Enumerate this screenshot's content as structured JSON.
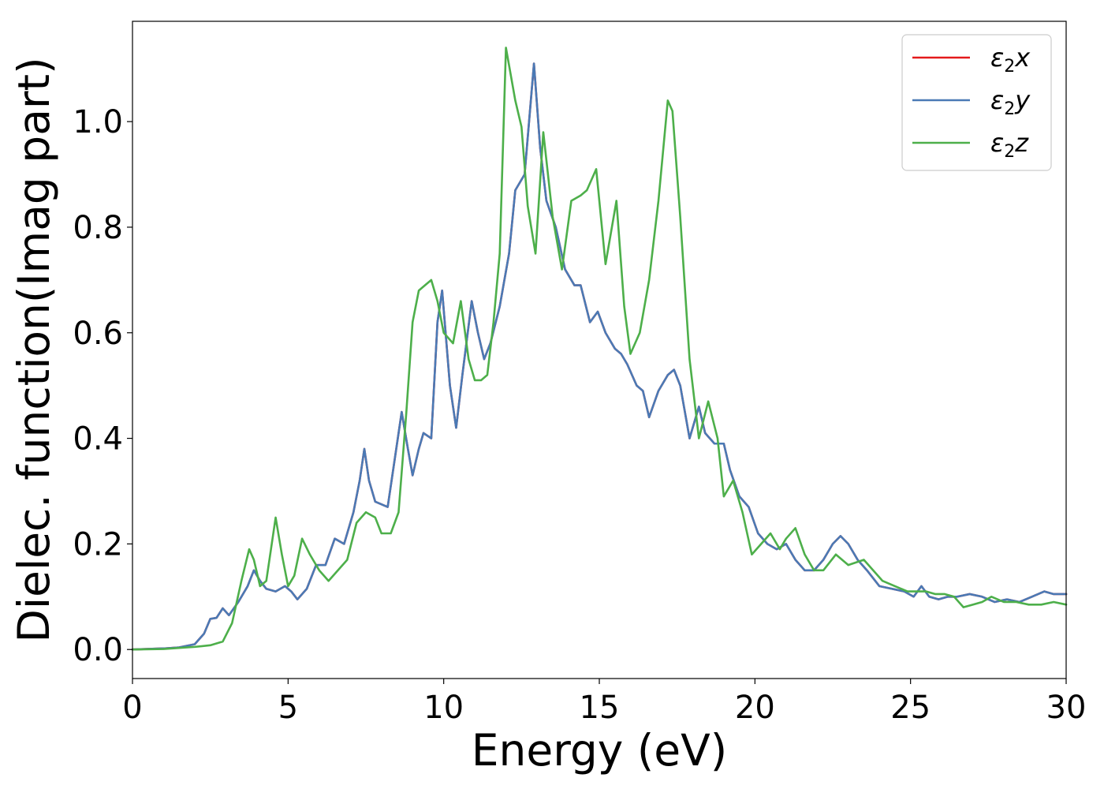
{
  "chart_data": {
    "type": "line",
    "xlabel": "Energy (eV)",
    "ylabel": "Dielec. function(Imag part)",
    "xlim": [
      0,
      30
    ],
    "ylim": [
      -0.055,
      1.19
    ],
    "xticks": [
      0,
      5,
      10,
      15,
      20,
      25,
      30
    ],
    "yticks": [
      0.0,
      0.2,
      0.4,
      0.6,
      0.8,
      1.0
    ],
    "grid": false,
    "legend_position": "top-right",
    "series": [
      {
        "name": "ε₂x",
        "base": "ε",
        "sub": "2",
        "suffix": "x",
        "color": "#e41a1c",
        "x": [
          0,
          1,
          1.5,
          2,
          2.3,
          2.5,
          2.7,
          2.9,
          3.1,
          3.4,
          3.7,
          3.9,
          4.1,
          4.3,
          4.6,
          4.9,
          5.1,
          5.3,
          5.6,
          5.9,
          6.2,
          6.5,
          6.8,
          7.1,
          7.3,
          7.45,
          7.6,
          7.8,
          8.0,
          8.2,
          8.4,
          8.65,
          8.85,
          9.0,
          9.2,
          9.35,
          9.6,
          9.8,
          9.95,
          10.2,
          10.4,
          10.6,
          10.9,
          11.1,
          11.3,
          11.5,
          11.8,
          12.1,
          12.3,
          12.6,
          12.9,
          13.1,
          13.3,
          13.6,
          13.9,
          14.2,
          14.4,
          14.7,
          14.95,
          15.2,
          15.5,
          15.7,
          15.9,
          16.2,
          16.4,
          16.6,
          16.9,
          17.2,
          17.4,
          17.6,
          17.9,
          18.2,
          18.4,
          18.7,
          19.0,
          19.2,
          19.5,
          19.8,
          20.1,
          20.4,
          20.7,
          21.0,
          21.3,
          21.6,
          21.9,
          22.2,
          22.5,
          22.75,
          23.0,
          23.3,
          23.6,
          24.0,
          24.4,
          24.8,
          25.1,
          25.35,
          25.6,
          25.9,
          26.2,
          26.5,
          26.9,
          27.3,
          27.7,
          28.1,
          28.5,
          28.9,
          29.3,
          29.6,
          30
        ],
        "y": [
          0,
          0.002,
          0.004,
          0.01,
          0.03,
          0.058,
          0.06,
          0.078,
          0.065,
          0.09,
          0.12,
          0.15,
          0.13,
          0.115,
          0.11,
          0.12,
          0.11,
          0.095,
          0.115,
          0.16,
          0.16,
          0.21,
          0.2,
          0.26,
          0.32,
          0.38,
          0.32,
          0.28,
          0.275,
          0.27,
          0.35,
          0.45,
          0.38,
          0.33,
          0.38,
          0.41,
          0.4,
          0.62,
          0.68,
          0.5,
          0.42,
          0.52,
          0.66,
          0.6,
          0.55,
          0.58,
          0.65,
          0.75,
          0.87,
          0.9,
          1.11,
          0.95,
          0.85,
          0.8,
          0.72,
          0.69,
          0.69,
          0.62,
          0.64,
          0.6,
          0.57,
          0.56,
          0.54,
          0.5,
          0.49,
          0.44,
          0.49,
          0.52,
          0.53,
          0.5,
          0.4,
          0.46,
          0.41,
          0.39,
          0.39,
          0.34,
          0.29,
          0.27,
          0.22,
          0.2,
          0.19,
          0.2,
          0.17,
          0.15,
          0.15,
          0.17,
          0.2,
          0.215,
          0.2,
          0.17,
          0.15,
          0.12,
          0.115,
          0.11,
          0.1,
          0.12,
          0.1,
          0.095,
          0.1,
          0.1,
          0.105,
          0.1,
          0.09,
          0.095,
          0.09,
          0.1,
          0.11,
          0.105,
          0.105
        ]
      },
      {
        "name": "ε₂y",
        "base": "ε",
        "sub": "2",
        "suffix": "y",
        "color": "#4a7ab5",
        "x": [
          0,
          1,
          1.5,
          2,
          2.3,
          2.5,
          2.7,
          2.9,
          3.1,
          3.4,
          3.7,
          3.9,
          4.1,
          4.3,
          4.6,
          4.9,
          5.1,
          5.3,
          5.6,
          5.9,
          6.2,
          6.5,
          6.8,
          7.1,
          7.3,
          7.45,
          7.6,
          7.8,
          8.0,
          8.2,
          8.4,
          8.65,
          8.85,
          9.0,
          9.2,
          9.35,
          9.6,
          9.8,
          9.95,
          10.2,
          10.4,
          10.6,
          10.9,
          11.1,
          11.3,
          11.5,
          11.8,
          12.1,
          12.3,
          12.6,
          12.9,
          13.1,
          13.3,
          13.6,
          13.9,
          14.2,
          14.4,
          14.7,
          14.95,
          15.2,
          15.5,
          15.7,
          15.9,
          16.2,
          16.4,
          16.6,
          16.9,
          17.2,
          17.4,
          17.6,
          17.9,
          18.2,
          18.4,
          18.7,
          19.0,
          19.2,
          19.5,
          19.8,
          20.1,
          20.4,
          20.7,
          21.0,
          21.3,
          21.6,
          21.9,
          22.2,
          22.5,
          22.75,
          23.0,
          23.3,
          23.6,
          24.0,
          24.4,
          24.8,
          25.1,
          25.35,
          25.6,
          25.9,
          26.2,
          26.5,
          26.9,
          27.3,
          27.7,
          28.1,
          28.5,
          28.9,
          29.3,
          29.6,
          30
        ],
        "y": [
          0,
          0.002,
          0.004,
          0.01,
          0.03,
          0.058,
          0.06,
          0.078,
          0.065,
          0.09,
          0.12,
          0.15,
          0.13,
          0.115,
          0.11,
          0.12,
          0.11,
          0.095,
          0.115,
          0.16,
          0.16,
          0.21,
          0.2,
          0.26,
          0.32,
          0.38,
          0.32,
          0.28,
          0.275,
          0.27,
          0.35,
          0.45,
          0.38,
          0.33,
          0.38,
          0.41,
          0.4,
          0.62,
          0.68,
          0.5,
          0.42,
          0.52,
          0.66,
          0.6,
          0.55,
          0.58,
          0.65,
          0.75,
          0.87,
          0.9,
          1.11,
          0.95,
          0.85,
          0.8,
          0.72,
          0.69,
          0.69,
          0.62,
          0.64,
          0.6,
          0.57,
          0.56,
          0.54,
          0.5,
          0.49,
          0.44,
          0.49,
          0.52,
          0.53,
          0.5,
          0.4,
          0.46,
          0.41,
          0.39,
          0.39,
          0.34,
          0.29,
          0.27,
          0.22,
          0.2,
          0.19,
          0.2,
          0.17,
          0.15,
          0.15,
          0.17,
          0.2,
          0.215,
          0.2,
          0.17,
          0.15,
          0.12,
          0.115,
          0.11,
          0.1,
          0.12,
          0.1,
          0.095,
          0.1,
          0.1,
          0.105,
          0.1,
          0.09,
          0.095,
          0.09,
          0.1,
          0.11,
          0.105,
          0.105
        ]
      },
      {
        "name": "ε₂z",
        "base": "ε",
        "sub": "2",
        "suffix": "z",
        "color": "#4daf4a",
        "x": [
          0,
          1,
          2,
          2.5,
          2.9,
          3.2,
          3.5,
          3.75,
          3.9,
          4.1,
          4.3,
          4.6,
          4.8,
          5.0,
          5.2,
          5.45,
          5.7,
          6.0,
          6.3,
          6.6,
          6.9,
          7.2,
          7.5,
          7.8,
          8.0,
          8.3,
          8.55,
          8.8,
          9.0,
          9.2,
          9.4,
          9.6,
          9.8,
          10.0,
          10.3,
          10.55,
          10.8,
          11.0,
          11.2,
          11.4,
          11.6,
          11.8,
          12.0,
          12.3,
          12.5,
          12.7,
          12.95,
          13.2,
          13.5,
          13.8,
          14.1,
          14.4,
          14.6,
          14.9,
          15.2,
          15.55,
          15.8,
          16.0,
          16.3,
          16.6,
          16.9,
          17.2,
          17.35,
          17.6,
          17.9,
          18.2,
          18.5,
          18.8,
          19.0,
          19.3,
          19.6,
          19.9,
          20.2,
          20.5,
          20.8,
          21.0,
          21.3,
          21.6,
          21.9,
          22.2,
          22.6,
          23.0,
          23.5,
          23.8,
          24.1,
          24.5,
          24.9,
          25.2,
          25.5,
          25.8,
          26.1,
          26.4,
          26.7,
          27.0,
          27.3,
          27.6,
          28.0,
          28.4,
          28.8,
          29.2,
          29.6,
          30
        ],
        "y": [
          0,
          0.001,
          0.005,
          0.008,
          0.015,
          0.05,
          0.13,
          0.19,
          0.17,
          0.12,
          0.13,
          0.25,
          0.18,
          0.12,
          0.14,
          0.21,
          0.18,
          0.15,
          0.13,
          0.15,
          0.17,
          0.24,
          0.26,
          0.25,
          0.22,
          0.22,
          0.26,
          0.45,
          0.62,
          0.68,
          0.69,
          0.7,
          0.66,
          0.6,
          0.58,
          0.66,
          0.55,
          0.51,
          0.51,
          0.52,
          0.62,
          0.75,
          1.14,
          1.04,
          0.99,
          0.84,
          0.75,
          0.98,
          0.82,
          0.72,
          0.85,
          0.86,
          0.87,
          0.91,
          0.73,
          0.85,
          0.65,
          0.56,
          0.6,
          0.7,
          0.85,
          1.04,
          1.02,
          0.82,
          0.55,
          0.4,
          0.47,
          0.4,
          0.29,
          0.32,
          0.26,
          0.18,
          0.2,
          0.22,
          0.19,
          0.21,
          0.23,
          0.18,
          0.15,
          0.15,
          0.18,
          0.16,
          0.17,
          0.15,
          0.13,
          0.12,
          0.11,
          0.11,
          0.11,
          0.105,
          0.105,
          0.1,
          0.08,
          0.085,
          0.09,
          0.1,
          0.09,
          0.09,
          0.085,
          0.085,
          0.09,
          0.085
        ]
      }
    ]
  }
}
